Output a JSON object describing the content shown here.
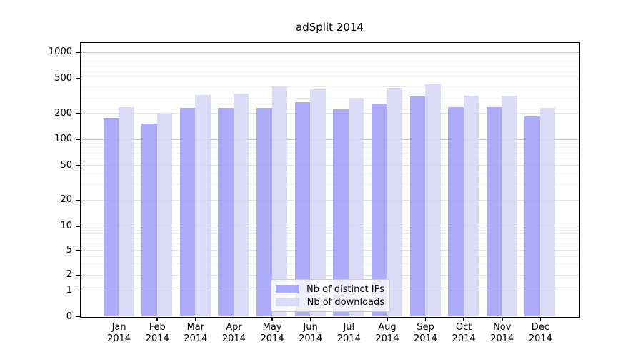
{
  "chart_data": {
    "type": "bar",
    "title": "adSplit 2014",
    "categories": [
      "Jan",
      "Feb",
      "Mar",
      "Apr",
      "May",
      "Jun",
      "Jul",
      "Aug",
      "Sep",
      "Oct",
      "Nov",
      "Dec"
    ],
    "category_year": "2014",
    "series": [
      {
        "name": "Nb of distinct IPs",
        "color": "rgba(158,158,250,0.85)",
        "values": [
          176,
          152,
          229,
          231,
          230,
          270,
          220,
          256,
          312,
          236,
          236,
          183
        ]
      },
      {
        "name": "Nb of downloads",
        "color": "rgba(214,214,247,0.85)",
        "values": [
          233,
          200,
          324,
          339,
          403,
          376,
          302,
          390,
          427,
          320,
          316,
          230
        ]
      }
    ],
    "xlabel": "",
    "ylabel": "",
    "yscale": "symlog",
    "y_ticks": [
      0,
      1,
      2,
      5,
      10,
      20,
      50,
      100,
      200,
      500,
      1000
    ],
    "y_minor_ticks": [
      3,
      4,
      6,
      7,
      8,
      9,
      30,
      40,
      60,
      70,
      80,
      90,
      300,
      400,
      600,
      700,
      800,
      900
    ],
    "ylim": [
      0,
      1285
    ],
    "grid": true,
    "legend": {
      "position": "lower center"
    },
    "colors": {
      "distinct_ips_bar": "#a8a8f0",
      "downloads_bar": "#dadaf6",
      "grid_major": "#c6c6c6",
      "grid_minor": "#eeeeee",
      "axis": "#000000",
      "background": "#ffffff"
    }
  }
}
